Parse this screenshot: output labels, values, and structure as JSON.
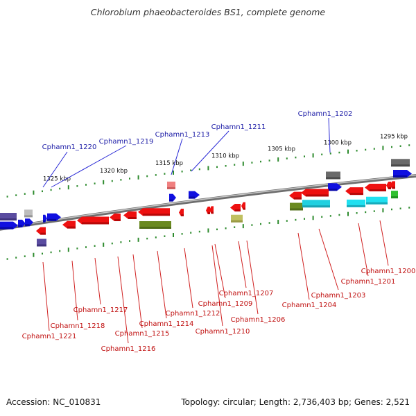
{
  "title": "Chlorobium phaeobacteroides BS1, complete genome",
  "accession": "Accession: NC_010831",
  "topology": "Topology: circular; Length: 2,736,403 bp; Genes: 2,521",
  "colors": {
    "backbone": "#8a8a8a",
    "tick": "#2e8b2e",
    "label_top": "#1a1aa6",
    "label_bottom": "#c01010",
    "leader_top": "#2a2ad6",
    "leader_bottom": "#d02020"
  },
  "ticks": [
    {
      "kbp": 1325,
      "label": "1325 kbp"
    },
    {
      "kbp": 1320,
      "label": "1320 kbp"
    },
    {
      "kbp": 1315,
      "label": "1315 kbp"
    },
    {
      "kbp": 1310,
      "label": "1310 kbp"
    },
    {
      "kbp": 1305,
      "label": "1305 kbp"
    },
    {
      "kbp": 1300,
      "label": "1300 kbp"
    },
    {
      "kbp": 1295,
      "label": "1295 kbp"
    }
  ],
  "genes_top": [
    {
      "id": "Cphamn1_1220",
      "label": "Cphamn1_1220"
    },
    {
      "id": "Cphamn1_1219",
      "label": "Cphamn1_1219"
    },
    {
      "id": "Cphamn1_1213",
      "label": "Cphamn1_1213"
    },
    {
      "id": "Cphamn1_1211",
      "label": "Cphamn1_1211"
    },
    {
      "id": "Cphamn1_1202",
      "label": "Cphamn1_1202"
    }
  ],
  "genes_bottom": [
    {
      "id": "Cphamn1_1221",
      "label": "Cphamn1_1221"
    },
    {
      "id": "Cphamn1_1218",
      "label": "Cphamn1_1218"
    },
    {
      "id": "Cphamn1_1217",
      "label": "Cphamn1_1217"
    },
    {
      "id": "Cphamn1_1216",
      "label": "Cphamn1_1216"
    },
    {
      "id": "Cphamn1_1215",
      "label": "Cphamn1_1215"
    },
    {
      "id": "Cphamn1_1214",
      "label": "Cphamn1_1214"
    },
    {
      "id": "Cphamn1_1212",
      "label": "Cphamn1_1212"
    },
    {
      "id": "Cphamn1_1210",
      "label": "Cphamn1_1210"
    },
    {
      "id": "Cphamn1_1209",
      "label": "Cphamn1_1209"
    },
    {
      "id": "Cphamn1_1207",
      "label": "Cphamn1_1207"
    },
    {
      "id": "Cphamn1_1206",
      "label": "Cphamn1_1206"
    },
    {
      "id": "Cphamn1_1204",
      "label": "Cphamn1_1204"
    },
    {
      "id": "Cphamn1_1203",
      "label": "Cphamn1_1203"
    },
    {
      "id": "Cphamn1_1201",
      "label": "Cphamn1_1201"
    },
    {
      "id": "Cphamn1_1200",
      "label": "Cphamn1_1200"
    }
  ]
}
